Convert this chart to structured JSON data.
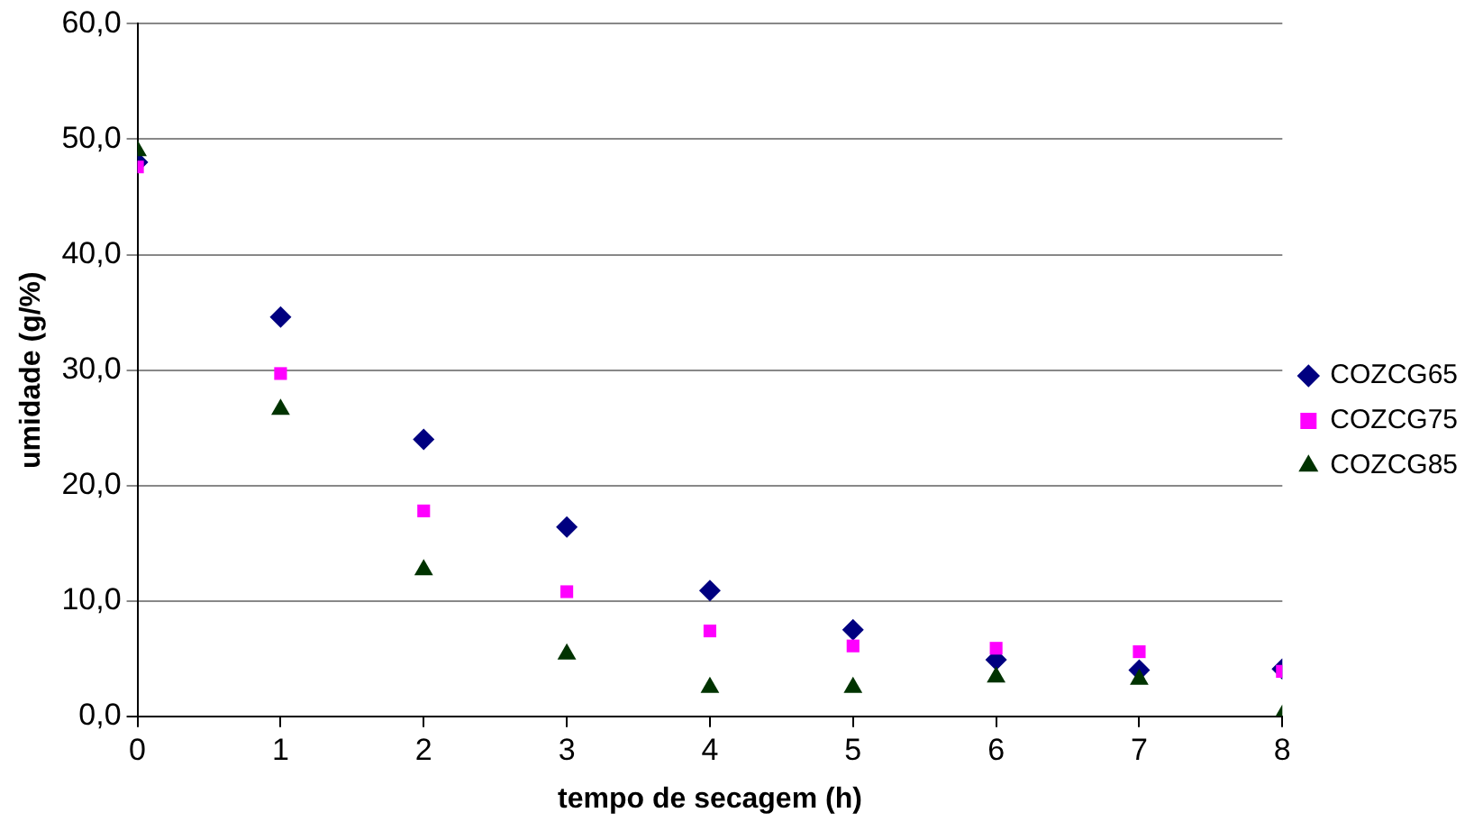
{
  "chart_data": {
    "type": "scatter",
    "xlabel": "tempo de secagem (h)",
    "ylabel": "umidade (g/%)",
    "x": [
      0,
      1,
      2,
      3,
      4,
      5,
      6,
      7,
      8
    ],
    "series": [
      {
        "name": "COZCG65",
        "color": "#000080",
        "marker": "diamond",
        "values": [
          48.0,
          34.6,
          24.0,
          16.4,
          10.9,
          7.5,
          4.9,
          4.0,
          4.1
        ]
      },
      {
        "name": "COZCG75",
        "color": "#ff00ff",
        "marker": "square",
        "values": [
          47.6,
          29.7,
          17.8,
          10.8,
          7.4,
          6.1,
          5.9,
          5.6,
          3.9
        ]
      },
      {
        "name": "COZCG85",
        "color": "#003300",
        "marker": "triangle",
        "values": [
          49.0,
          26.6,
          12.7,
          5.4,
          2.5,
          2.5,
          3.4,
          3.2,
          0.1
        ]
      }
    ],
    "xlim": [
      0,
      8
    ],
    "xticks": [
      0,
      1,
      2,
      3,
      4,
      5,
      6,
      7,
      8
    ],
    "ylim": [
      0,
      60
    ],
    "yticks": [
      {
        "value": 0,
        "label": "0,0"
      },
      {
        "value": 10,
        "label": "10,0"
      },
      {
        "value": 20,
        "label": "20,0"
      },
      {
        "value": 30,
        "label": "30,0"
      },
      {
        "value": 40,
        "label": "40,0"
      },
      {
        "value": 50,
        "label": "50,0"
      },
      {
        "value": 60,
        "label": "60,0"
      }
    ],
    "grid": "y",
    "legend": "right"
  }
}
